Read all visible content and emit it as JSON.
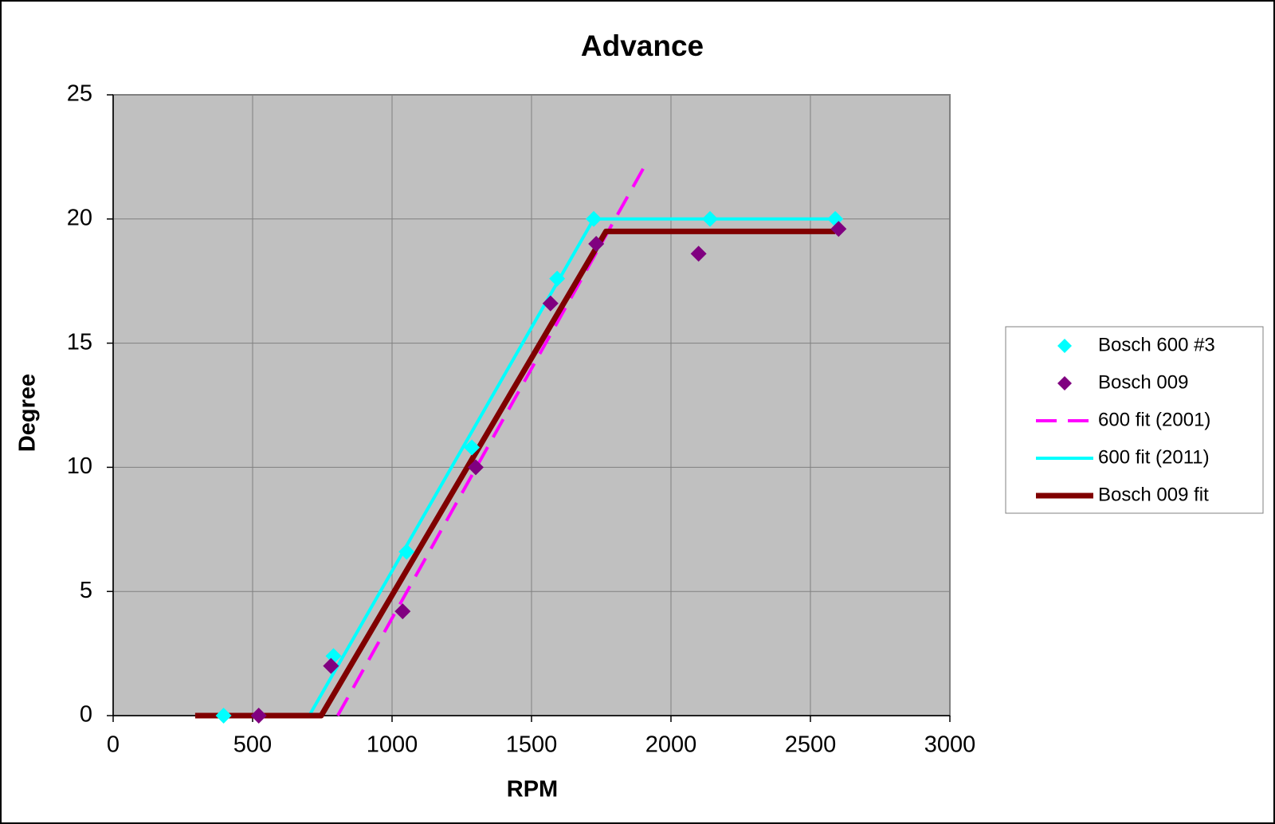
{
  "chart_data": {
    "type": "scatter",
    "title": "Advance",
    "xlabel": "RPM",
    "ylabel": "Degree",
    "xlim": [
      0,
      3000
    ],
    "ylim": [
      0,
      25
    ],
    "xticks": [
      0,
      500,
      1000,
      1500,
      2000,
      2500,
      3000
    ],
    "yticks": [
      0,
      5,
      10,
      15,
      20,
      25
    ],
    "grid": true,
    "legend": "right",
    "series": [
      {
        "name": "Bosch 600 #3",
        "color": "#00ffff",
        "style": "marker",
        "x": [
          396,
          790,
          1052,
          1286,
          1592,
          1723,
          2140,
          2589
        ],
        "values": [
          0,
          2.4,
          6.6,
          10.8,
          17.6,
          20,
          20,
          20
        ]
      },
      {
        "name": "Bosch 009",
        "color": "#800080",
        "style": "marker",
        "x": [
          522,
          781,
          1038,
          1300,
          1568,
          1732,
          2099,
          2601
        ],
        "values": [
          0,
          2,
          4.2,
          10,
          16.6,
          19,
          18.6,
          19.6
        ]
      },
      {
        "name": "600 fit (2001)",
        "color": "#ff00ff",
        "style": "dashed",
        "x": [
          805,
          1904
        ],
        "values": [
          0,
          22.1
        ]
      },
      {
        "name": "600 fit (2011)",
        "color": "#00ffff",
        "style": "solid",
        "x": [
          703,
          1723,
          2589
        ],
        "values": [
          0,
          20,
          20
        ]
      },
      {
        "name": "Bosch 009 fit",
        "color": "#800000",
        "style": "thick",
        "x": [
          294,
          746,
          1767,
          2589
        ],
        "values": [
          0,
          0,
          19.5,
          19.5
        ]
      }
    ]
  }
}
